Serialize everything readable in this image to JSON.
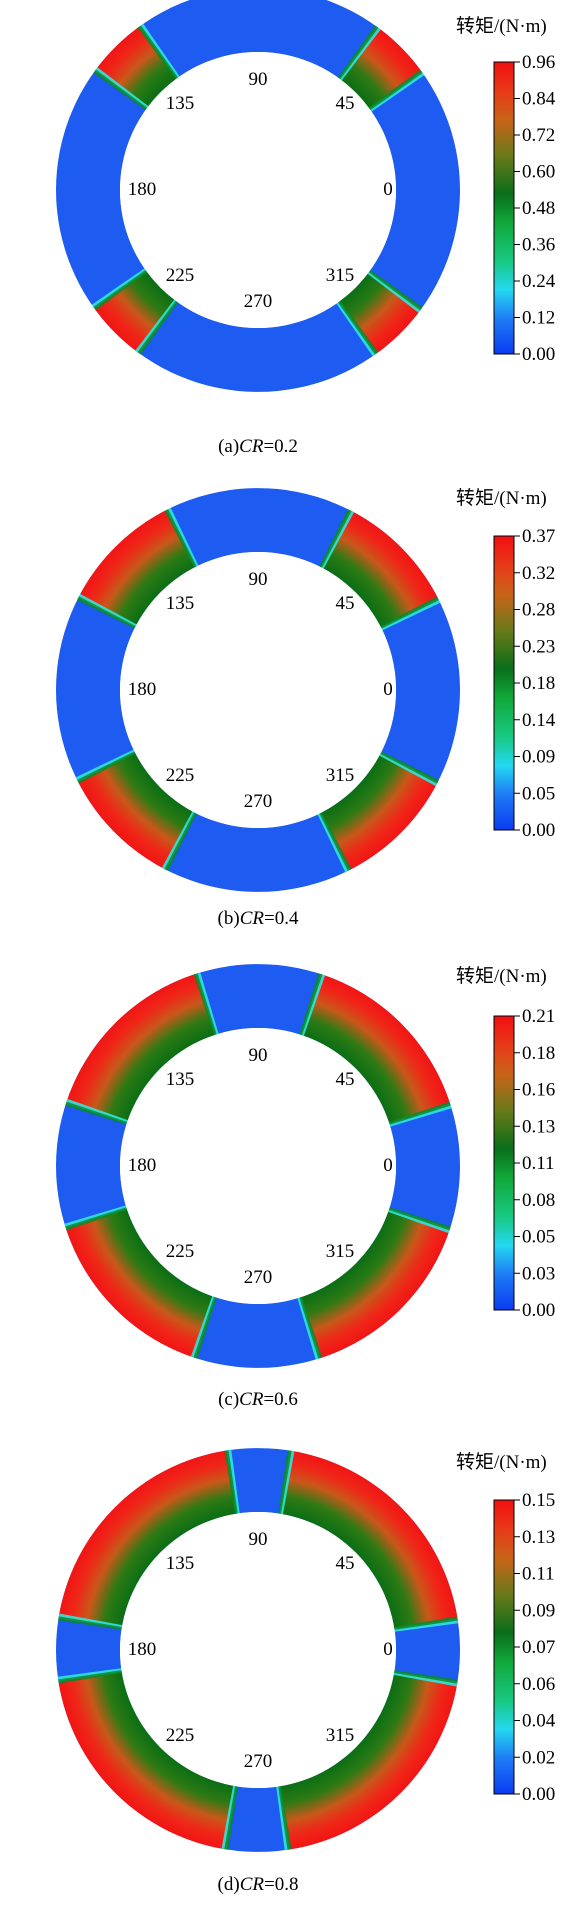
{
  "panels": [
    {
      "caption_prefix": "(a)",
      "caption_var": "CR",
      "caption_eq": "=0.2",
      "colorbar_title": "转矩/(N·m)",
      "ticks": [
        "0.96",
        "0.84",
        "0.72",
        "0.60",
        "0.48",
        "0.36",
        "0.24",
        "0.12",
        "0.00"
      ],
      "angle_labels": [
        "90",
        "45",
        "0",
        "315",
        "270",
        "225",
        "180",
        "135"
      ],
      "cr": 0.2
    },
    {
      "caption_prefix": "(b)",
      "caption_var": "CR",
      "caption_eq": "=0.4",
      "colorbar_title": "转矩/(N·m)",
      "ticks": [
        "0.37",
        "0.32",
        "0.28",
        "0.23",
        "0.18",
        "0.14",
        "0.09",
        "0.05",
        "0.00"
      ],
      "angle_labels": [
        "90",
        "45",
        "0",
        "315",
        "270",
        "225",
        "180",
        "135"
      ],
      "cr": 0.4
    },
    {
      "caption_prefix": "(c)",
      "caption_var": "CR",
      "caption_eq": "=0.6",
      "colorbar_title": "转矩/(N·m)",
      "ticks": [
        "0.21",
        "0.18",
        "0.16",
        "0.13",
        "0.11",
        "0.08",
        "0.05",
        "0.03",
        "0.00"
      ],
      "angle_labels": [
        "90",
        "45",
        "0",
        "315",
        "270",
        "225",
        "180",
        "135"
      ],
      "cr": 0.6
    },
    {
      "caption_prefix": "(d)",
      "caption_var": "CR",
      "caption_eq": "=0.8",
      "colorbar_title": "转矩/(N·m)",
      "ticks": [
        "0.15",
        "0.13",
        "0.11",
        "0.09",
        "0.07",
        "0.06",
        "0.04",
        "0.02",
        "0.00"
      ],
      "angle_labels": [
        "90",
        "45",
        "0",
        "315",
        "270",
        "225",
        "180",
        "135"
      ],
      "cr": 0.8
    }
  ],
  "colors": {
    "low": "#1E5BF0",
    "cyan": "#2EE6E0",
    "mid": "#0E7A1A",
    "high": "#F01818"
  }
}
